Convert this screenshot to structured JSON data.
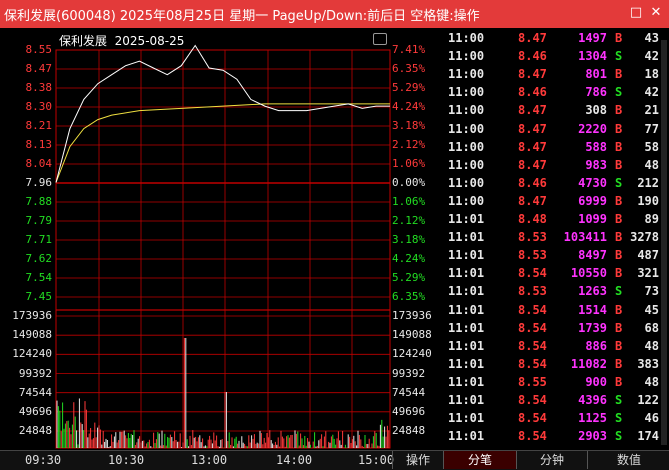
{
  "window": {
    "title": "保利发展(600048) 2025年08月25日 星期一 PageUp/Down:前后日 空格键:操作",
    "restore_glyph": "□",
    "close_glyph": "✕"
  },
  "chart": {
    "stock_name": "保利发展",
    "date": "2025-08-25",
    "price_labels": [
      "8.55",
      "8.47",
      "8.38",
      "8.30",
      "8.21",
      "8.13",
      "8.04",
      "7.96",
      "7.88",
      "7.79",
      "7.71",
      "7.62",
      "7.54",
      "7.45"
    ],
    "pct_labels": [
      "7.41%",
      "6.35%",
      "5.29%",
      "4.24%",
      "3.18%",
      "2.12%",
      "1.06%",
      "0.00%",
      "1.06%",
      "2.12%",
      "3.18%",
      "4.24%",
      "5.29%",
      "6.35%"
    ],
    "volume_labels": [
      "173936",
      "149088",
      "124240",
      "99392",
      "74544",
      "49696",
      "24848"
    ],
    "time_labels": [
      "09:30",
      "10:30",
      "13:00",
      "14:00",
      "15:00"
    ],
    "colors": {
      "up": "#ff3a3a",
      "down": "#22dd22",
      "flat": "#e8e8e8",
      "price_line": "#ffffff",
      "avg_line": "#f0e040",
      "grid": "#c00000"
    }
  },
  "chart_data": {
    "type": "line",
    "series_price": {
      "x": [
        "09:30",
        "09:40",
        "09:50",
        "10:00",
        "10:10",
        "10:20",
        "10:30",
        "10:40",
        "10:50",
        "11:00",
        "11:10",
        "11:20",
        "11:30",
        "13:10",
        "13:20",
        "13:30",
        "13:40",
        "13:50",
        "14:00",
        "14:10",
        "14:20",
        "14:30",
        "14:40",
        "14:50",
        "15:00"
      ],
      "values": [
        7.96,
        8.2,
        8.33,
        8.4,
        8.44,
        8.48,
        8.5,
        8.47,
        8.44,
        8.48,
        8.57,
        8.47,
        8.46,
        8.42,
        8.33,
        8.3,
        8.28,
        8.28,
        8.28,
        8.29,
        8.3,
        8.31,
        8.29,
        8.3,
        8.3
      ]
    },
    "series_avg": {
      "x": [
        "09:30",
        "09:40",
        "09:50",
        "10:00",
        "10:10",
        "10:30",
        "11:00",
        "11:30",
        "13:30",
        "14:00",
        "14:30",
        "15:00"
      ],
      "values": [
        7.96,
        8.12,
        8.2,
        8.24,
        8.26,
        8.28,
        8.29,
        8.3,
        8.31,
        8.31,
        8.31,
        8.31
      ]
    },
    "ylim": [
      7.45,
      8.55
    ]
  },
  "trades": {
    "rows": [
      {
        "time": "11:00",
        "price": "8.47",
        "vol": "1497",
        "vol_color": "mag",
        "side": "B",
        "count": "43"
      },
      {
        "time": "11:00",
        "price": "8.46",
        "vol": "1304",
        "vol_color": "mag",
        "side": "S",
        "count": "42"
      },
      {
        "time": "11:00",
        "price": "8.47",
        "vol": "801",
        "vol_color": "mag",
        "side": "B",
        "count": "18"
      },
      {
        "time": "11:00",
        "price": "8.46",
        "vol": "786",
        "vol_color": "mag",
        "side": "S",
        "count": "42"
      },
      {
        "time": "11:00",
        "price": "8.47",
        "vol": "308",
        "vol_color": "wht",
        "side": "B",
        "count": "21"
      },
      {
        "time": "11:00",
        "price": "8.47",
        "vol": "2220",
        "vol_color": "mag",
        "side": "B",
        "count": "77"
      },
      {
        "time": "11:00",
        "price": "8.47",
        "vol": "588",
        "vol_color": "mag",
        "side": "B",
        "count": "58"
      },
      {
        "time": "11:00",
        "price": "8.47",
        "vol": "983",
        "vol_color": "mag",
        "side": "B",
        "count": "48"
      },
      {
        "time": "11:00",
        "price": "8.46",
        "vol": "4730",
        "vol_color": "mag",
        "side": "S",
        "count": "212"
      },
      {
        "time": "11:00",
        "price": "8.47",
        "vol": "6999",
        "vol_color": "mag",
        "side": "B",
        "count": "190"
      },
      {
        "time": "11:01",
        "price": "8.48",
        "vol": "1099",
        "vol_color": "mag",
        "side": "B",
        "count": "89"
      },
      {
        "time": "11:01",
        "price": "8.53",
        "vol": "103411",
        "vol_color": "mag",
        "side": "B",
        "count": "3278"
      },
      {
        "time": "11:01",
        "price": "8.53",
        "vol": "8497",
        "vol_color": "mag",
        "side": "B",
        "count": "487"
      },
      {
        "time": "11:01",
        "price": "8.54",
        "vol": "10550",
        "vol_color": "mag",
        "side": "B",
        "count": "321"
      },
      {
        "time": "11:01",
        "price": "8.53",
        "vol": "1263",
        "vol_color": "mag",
        "side": "S",
        "count": "73"
      },
      {
        "time": "11:01",
        "price": "8.54",
        "vol": "1514",
        "vol_color": "mag",
        "side": "B",
        "count": "45"
      },
      {
        "time": "11:01",
        "price": "8.54",
        "vol": "1739",
        "vol_color": "mag",
        "side": "B",
        "count": "68"
      },
      {
        "time": "11:01",
        "price": "8.54",
        "vol": "886",
        "vol_color": "mag",
        "side": "B",
        "count": "48"
      },
      {
        "time": "11:01",
        "price": "8.54",
        "vol": "11082",
        "vol_color": "mag",
        "side": "B",
        "count": "383"
      },
      {
        "time": "11:01",
        "price": "8.55",
        "vol": "900",
        "vol_color": "mag",
        "side": "B",
        "count": "48"
      },
      {
        "time": "11:01",
        "price": "8.54",
        "vol": "4396",
        "vol_color": "mag",
        "side": "S",
        "count": "122"
      },
      {
        "time": "11:01",
        "price": "8.54",
        "vol": "1125",
        "vol_color": "mag",
        "side": "S",
        "count": "46"
      },
      {
        "time": "11:01",
        "price": "8.54",
        "vol": "2903",
        "vol_color": "mag",
        "side": "S",
        "count": "174"
      }
    ]
  },
  "bottom_tabs": {
    "operate": "操作",
    "tick": "分笔",
    "minute": "分钟",
    "value": "数值"
  }
}
